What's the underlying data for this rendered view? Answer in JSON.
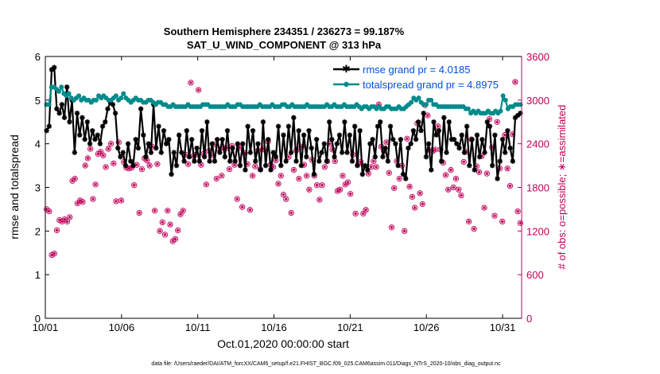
{
  "chart_data": {
    "type": "line",
    "title": "Southern Hemisphere 234351 / 236273 = 99.187%",
    "subtitle": "SAT_U_WIND_COMPONENT @ 313 hPa",
    "xlabel": "Oct.01,2020 00:00:00 start",
    "ylabel": "rmse and totalspread",
    "ylabel_right": "# of obs: o=possible; ∗=assimilated",
    "footnote": "data file: /Users/raeder/DAI/ATM_forcXX/CAM6_setup/f.e21.FHIST_BGC.f09_025.CAM6assim.011/Diags_NTrS_2020-10/obs_diag_output.nc",
    "x_ticks": [
      "10/01",
      "10/06",
      "10/11",
      "10/16",
      "10/21",
      "10/26",
      "10/31"
    ],
    "x_tick_values": [
      1,
      6,
      11,
      16,
      21,
      26,
      31
    ],
    "xlim": [
      1,
      32.25
    ],
    "ylim": [
      0,
      6
    ],
    "y_ticks": [
      "0",
      "1",
      "2",
      "3",
      "4",
      "5",
      "6"
    ],
    "ylim_right": [
      0,
      3600
    ],
    "y_ticks_right": [
      "0",
      "600",
      "1200",
      "1800",
      "2400",
      "3000",
      "3600"
    ],
    "legend_position": "top-right",
    "colors": {
      "rmse": "#000000",
      "spread": "#008b8b",
      "obs": "#c0005a"
    },
    "series": [
      {
        "name": "rmse grand pr = 4.0185",
        "axis": "left",
        "values": [
          4.3,
          4.4,
          5.7,
          5.75,
          4.8,
          4.7,
          4.9,
          4.6,
          5.3,
          4.5,
          5.0,
          3.8,
          4.7,
          4.2,
          4.6,
          4.1,
          4.5,
          4.0,
          4.3,
          4.1,
          4.2,
          4.0,
          4.4,
          4.5,
          4.8,
          4.95,
          4.9,
          4.7,
          3.9,
          3.7,
          3.8,
          3.5,
          4.0,
          3.6,
          3.5,
          4.1,
          3.9,
          4.8,
          4.2,
          3.7,
          4.0,
          3.8,
          4.9,
          3.9,
          4.4,
          3.8,
          4.3,
          4.0,
          4.1,
          3.3,
          3.8,
          3.5,
          4.2,
          3.8,
          3.6,
          4.3,
          3.7,
          4.1,
          3.6,
          3.9,
          3.6,
          4.3,
          3.7,
          4.5,
          3.6,
          4.0,
          3.6,
          4.1,
          3.8,
          4.1,
          3.7,
          4.3,
          3.6,
          3.9,
          3.6,
          4.0,
          3.5,
          4.0,
          3.4,
          4.4,
          3.8,
          4.3,
          3.6,
          4.0,
          3.4,
          4.5,
          3.5,
          4.1,
          3.4,
          3.8,
          3.7,
          4.4,
          3.5,
          4.2,
          3.6,
          4.4,
          3.8,
          4.6,
          3.6,
          4.3,
          3.5,
          4.2,
          3.7,
          4.3,
          3.9,
          3.3,
          4.1,
          3.6,
          3.8,
          4.0,
          3.6,
          4.5,
          4.1,
          3.7,
          4.0,
          4.2,
          3.8,
          4.5,
          3.8,
          4.2,
          3.6,
          4.4,
          3.5,
          4.3,
          3.3,
          3.5,
          3.4,
          4.0,
          4.1,
          3.7,
          4.4,
          4.5,
          3.7,
          3.9,
          3.6,
          4.4,
          4.1,
          4.0,
          3.5,
          4.1,
          3.3,
          3.2,
          3.9,
          4.0,
          4.3,
          4.1,
          4.5,
          4.3,
          4.7,
          3.7,
          4.0,
          3.4,
          4.5,
          4.2,
          4.3,
          3.6,
          4.6,
          3.8,
          4.5,
          4.1,
          4.1,
          4.0,
          3.9,
          4.2,
          3.8,
          4.4,
          3.5,
          4.1,
          3.4,
          4.2,
          3.7,
          4.1,
          3.8,
          4.5,
          4.4,
          3.5,
          4.2,
          3.2,
          3.6,
          4.1,
          3.8,
          4.3,
          3.9,
          3.6,
          4.6,
          4.65,
          4.7
        ]
      },
      {
        "name": "totalspread grand pr = 4.8975",
        "axis": "left",
        "values": [
          4.9,
          4.9,
          5.3,
          5.3,
          5.25,
          5.2,
          5.3,
          5.15,
          5.1,
          5.15,
          5.05,
          5.0,
          5.05,
          5.1,
          5.0,
          5.05,
          5.0,
          5.0,
          4.95,
          5.0,
          5.0,
          5.1,
          5.05,
          5.1,
          5.05,
          5.0,
          5.0,
          5.05,
          5.1,
          5.0,
          5.05,
          5.15,
          5.05,
          5.0,
          4.95,
          5.0,
          5.05,
          5.0,
          5.0,
          4.95,
          4.95,
          5.0,
          5.0,
          4.95,
          4.9,
          4.95,
          4.95,
          4.9,
          4.9,
          4.85,
          4.85,
          4.9,
          4.85,
          4.85,
          4.85,
          4.85,
          4.85,
          4.9,
          4.85,
          4.85,
          4.85,
          4.85,
          4.85,
          4.9,
          4.9,
          4.9,
          4.85,
          4.85,
          4.85,
          4.85,
          4.85,
          4.85,
          4.85,
          4.9,
          4.85,
          4.85,
          4.85,
          4.9,
          4.9,
          4.85,
          4.85,
          4.85,
          4.85,
          4.85,
          4.85,
          4.85,
          4.9,
          4.85,
          4.85,
          4.85,
          4.85,
          4.9,
          4.85,
          4.85,
          4.85,
          4.9,
          4.9,
          4.85,
          4.85,
          4.9,
          4.85,
          4.85,
          4.85,
          4.85,
          4.85,
          4.9,
          4.85,
          4.85,
          4.85,
          4.85,
          4.85,
          4.85,
          4.85,
          4.9,
          4.85,
          4.85,
          4.9,
          4.85,
          4.85,
          4.85,
          4.9,
          4.85,
          4.85,
          4.85,
          4.85,
          4.9,
          4.85,
          4.8,
          4.85,
          4.85,
          4.8,
          4.85,
          4.85,
          4.8,
          4.85,
          4.8,
          4.8,
          4.85,
          4.85,
          4.8,
          4.8,
          4.8,
          4.85,
          4.8,
          4.8,
          4.85,
          4.9,
          4.95,
          5.05,
          5.0,
          5.05,
          4.95,
          4.9,
          4.9,
          5.0,
          5.0,
          4.9,
          4.9,
          4.85,
          4.85,
          4.85,
          4.85,
          4.85,
          4.85,
          4.85,
          4.85,
          4.85,
          4.85,
          4.85,
          4.8,
          4.8,
          4.7,
          4.75,
          4.7,
          4.75,
          4.7,
          4.7,
          4.7,
          4.75,
          4.7,
          4.7,
          4.75,
          4.7,
          4.75,
          5.1,
          5.0,
          4.8,
          4.85,
          4.85,
          4.9,
          4.9,
          4.9
        ]
      }
    ],
    "obs_assimilated": [
      1500,
      1470,
      870,
      890,
      1210,
      1350,
      1330,
      1360,
      1330,
      1390,
      1890,
      1920,
      1580,
      1620,
      1600,
      2100,
      2200,
      2330,
      1640,
      1840,
      2260,
      2290,
      2240,
      2080,
      2330,
      2400,
      2130,
      1610,
      2420,
      1620,
      2150,
      2070,
      2060,
      2070,
      1830,
      2110,
      1450,
      2050,
      2200,
      2170,
      2100,
      2360,
      1480,
      2120,
      1200,
      1320,
      1150,
      1480,
      1290,
      1060,
      1090,
      1210,
      1430,
      1480,
      2250,
      2120,
      3240,
      2230,
      2250,
      3140,
      2110,
      2260,
      1840,
      2300,
      2240,
      2390,
      1920,
      2320,
      1960,
      2340,
      2340,
      2050,
      2370,
      2110,
      1640,
      2350,
      1530,
      2270,
      2120,
      1490,
      1960,
      2090,
      2300,
      2050,
      2330,
      2310,
      2430,
      2110,
      2080,
      2170,
      1850,
      1960,
      1700,
      1640,
      2220,
      1450,
      2040,
      2310,
      1920,
      2360,
      2110,
      1960,
      1770,
      2180,
      1960,
      1830,
      1630,
      1830,
      2080,
      2160,
      2400,
      2320,
      2160,
      1750,
      1770,
      1960,
      1840,
      1870,
      1710,
      2250,
      1440,
      2120,
      2150,
      1440,
      1490,
      1990,
      2080,
      2160,
      2080,
      2940,
      2360,
      2300,
      2420,
      2000,
      1250,
      1790,
      2160,
      1920,
      2100,
      1200,
      2470,
      1810,
      1670,
      1520,
      2680,
      1720,
      1570,
      2930,
      2790,
      2310,
      2300,
      2320,
      2640,
      2320,
      2140,
      1970,
      1770,
      2040,
      1800,
      1920,
      1770,
      1690,
      2150,
      2290,
      1330,
      2460,
      1230,
      2090,
      2010,
      2230,
      1520,
      1990,
      2740,
      2350,
      1410,
      2700,
      2060,
      1330,
      2520,
      2060,
      1820,
      2530,
      3250,
      1470,
      1310
    ]
  }
}
